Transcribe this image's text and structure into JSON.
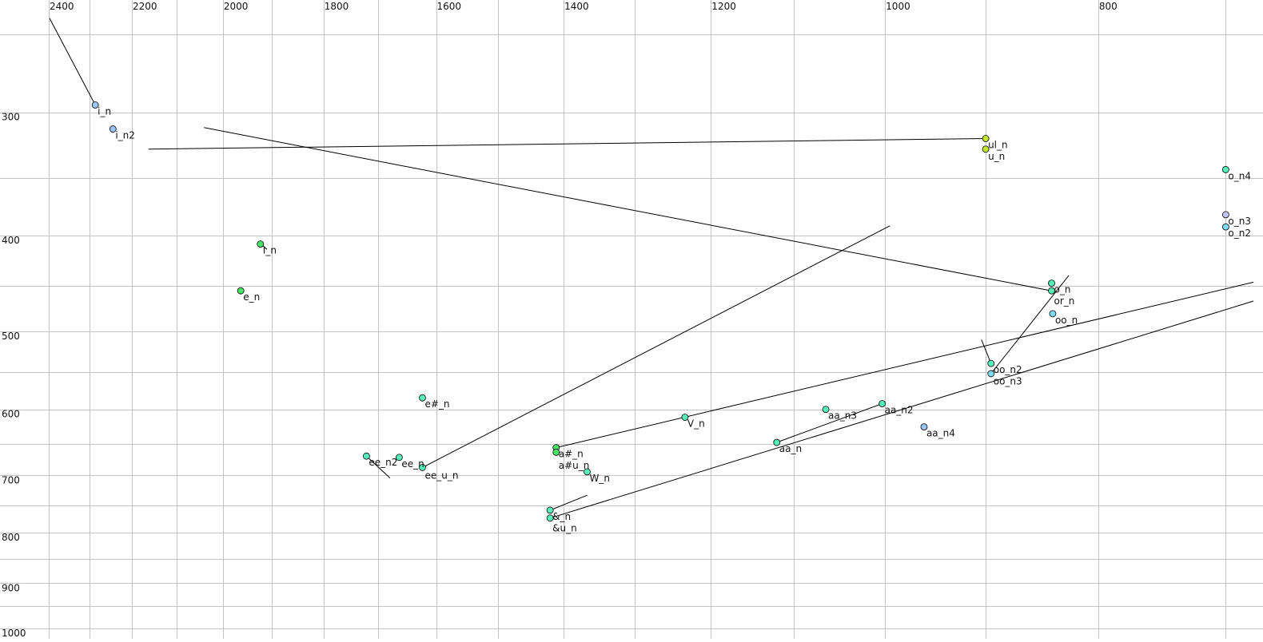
{
  "chart_data": {
    "type": "scatter",
    "title": "",
    "xlabel": "",
    "ylabel": "",
    "x_scale": "log",
    "y_scale": "log",
    "x_reversed": true,
    "xlim": [
      2400,
      700
    ],
    "ylim": [
      250,
      1000
    ],
    "x_axis_position": "top",
    "y_axis_position": "left",
    "grid": true,
    "x_ticks": [
      2400,
      2200,
      2000,
      1800,
      1600,
      1400,
      1200,
      1000,
      800
    ],
    "y_ticks": [
      300,
      400,
      500,
      600,
      700,
      800,
      900,
      1000
    ],
    "x_gridlines": [
      2400,
      2300,
      2200,
      2100,
      2000,
      1900,
      1800,
      1700,
      1600,
      1500,
      1400,
      1300,
      1200,
      1100,
      1000,
      900,
      800,
      700
    ],
    "y_gridlines": [
      250,
      300,
      350,
      400,
      450,
      500,
      550,
      600,
      650,
      700,
      750,
      800,
      850,
      900,
      950,
      1000
    ],
    "colors": {
      "blue": "#9cc4f4",
      "light_blue": "#80daf2",
      "lavender": "#c4c4f8",
      "green": "#48e868",
      "yellow_green": "#c4e828",
      "teal_green": "#56f0b8"
    },
    "points": [
      {
        "label": "i_n",
        "x": 2286,
        "y": 295,
        "color": "blue"
      },
      {
        "label": "i_n2",
        "x": 2244,
        "y": 312,
        "color": "blue"
      },
      {
        "label": "ul_n",
        "x": 900,
        "y": 319,
        "color": "yellow_green"
      },
      {
        "label": "u_n",
        "x": 900,
        "y": 327,
        "color": "yellow_green"
      },
      {
        "label": "o_n4",
        "x": 700,
        "y": 343,
        "color": "teal_green"
      },
      {
        "label": "o_n3",
        "x": 700,
        "y": 381,
        "color": "lavender"
      },
      {
        "label": "o_n2",
        "x": 700,
        "y": 392,
        "color": "light_blue"
      },
      {
        "label": "I_n",
        "x": 1923,
        "y": 408,
        "color": "green"
      },
      {
        "label": "e_n",
        "x": 1963,
        "y": 455,
        "color": "green"
      },
      {
        "label": "o_n",
        "x": 840,
        "y": 447,
        "color": "teal_green"
      },
      {
        "label": "or_n",
        "x": 840,
        "y": 455,
        "color": "teal_green"
      },
      {
        "label": "oo_n",
        "x": 839,
        "y": 480,
        "color": "light_blue"
      },
      {
        "label": "oo_n2",
        "x": 895,
        "y": 539,
        "color": "teal_green"
      },
      {
        "label": "oo_n3",
        "x": 895,
        "y": 552,
        "color": "light_blue"
      },
      {
        "label": "e#_n",
        "x": 1623,
        "y": 584,
        "color": "teal_green"
      },
      {
        "label": "V_n",
        "x": 1233,
        "y": 611,
        "color": "teal_green"
      },
      {
        "label": "aa_n3",
        "x": 1064,
        "y": 600,
        "color": "teal_green"
      },
      {
        "label": "aa_n2",
        "x": 1003,
        "y": 592,
        "color": "teal_green"
      },
      {
        "label": "aa_n4",
        "x": 960,
        "y": 625,
        "color": "blue"
      },
      {
        "label": "aa_n",
        "x": 1120,
        "y": 648,
        "color": "teal_green"
      },
      {
        "label": "ee_n2",
        "x": 1721,
        "y": 669,
        "color": "teal_green"
      },
      {
        "label": "ee_n",
        "x": 1663,
        "y": 671,
        "color": "teal_green"
      },
      {
        "label": "ee_u_n",
        "x": 1623,
        "y": 687,
        "color": "teal_green"
      },
      {
        "label": "a#_n",
        "x": 1411,
        "y": 656,
        "color": "green"
      },
      {
        "label": "a#u_n",
        "x": 1411,
        "y": 663,
        "color": "green"
      },
      {
        "label": "W_n",
        "x": 1366,
        "y": 694,
        "color": "teal_green"
      },
      {
        "label": "&_n",
        "x": 1420,
        "y": 759,
        "color": "teal_green"
      },
      {
        "label": "&u_n",
        "x": 1420,
        "y": 773,
        "color": "teal_green"
      }
    ],
    "tracks": [
      {
        "from": "i_n",
        "points": [
          [
            2398,
            241
          ],
          [
            2286,
            295
          ]
        ]
      },
      {
        "from": "ul_n",
        "points": [
          [
            2162,
            327
          ],
          [
            900,
            319
          ]
        ]
      },
      {
        "from": "or_n",
        "points": [
          [
            2040,
            311
          ],
          [
            840,
            455
          ]
        ]
      },
      {
        "from": "ee_u_n",
        "points": [
          [
            995,
            391
          ],
          [
            1623,
            687
          ]
        ]
      },
      {
        "from": "a#_n",
        "points": [
          [
            1411,
            656
          ],
          [
            680,
            446
          ]
        ]
      },
      {
        "from": "&u_n",
        "points": [
          [
            1420,
            773
          ],
          [
            680,
            466
          ]
        ]
      },
      {
        "from": "&_n",
        "points": [
          [
            1420,
            759
          ],
          [
            1366,
            733
          ]
        ]
      },
      {
        "from": "aa_n",
        "points": [
          [
            1120,
            648
          ],
          [
            1003,
            592
          ]
        ]
      },
      {
        "from": "oo_n3",
        "points": [
          [
            895,
            552
          ],
          [
            825,
            439
          ]
        ]
      },
      {
        "from": "oo_n2",
        "points": [
          [
            895,
            539
          ],
          [
            904,
            510
          ]
        ]
      },
      {
        "from": "ee_n2",
        "points": [
          [
            1721,
            669
          ],
          [
            1679,
            704
          ]
        ]
      },
      {
        "from": "I_n",
        "points": [
          [
            1923,
            408
          ],
          [
            1910,
            413
          ]
        ]
      }
    ]
  }
}
